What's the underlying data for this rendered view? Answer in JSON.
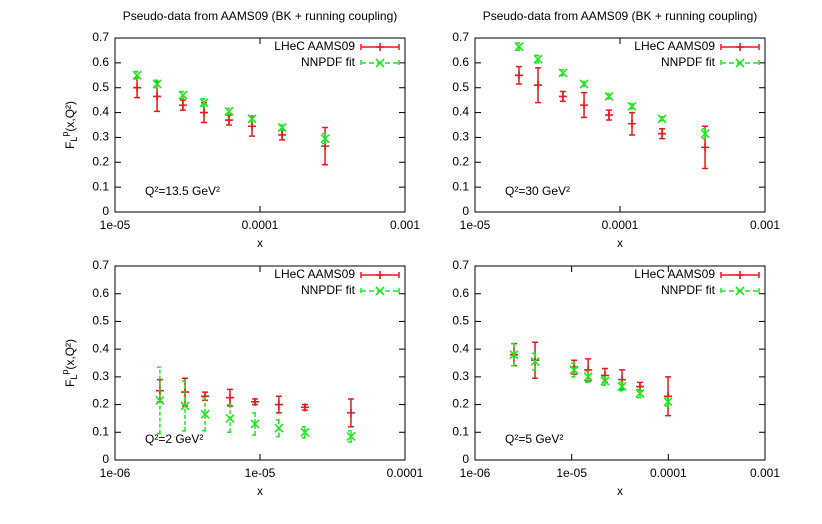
{
  "chart_data": [
    {
      "type": "scatter",
      "title": "Pseudo-data from AAMS09 (BK + running coupling)",
      "xlabel": "x",
      "ylabel": {
        "main": "F",
        "sub": "L",
        "sup": "p",
        "rest": "(x,Q²)"
      },
      "annotation": "Q²=13.5 GeV²",
      "log_x": true,
      "legend": "top-right",
      "xlim": [
        1e-05,
        0.001
      ],
      "xticks": [
        {
          "value": 1e-05,
          "label": "1e-05"
        },
        0.0001,
        0.001
      ],
      "ylim": [
        0,
        0.7
      ],
      "yticks": [
        0,
        0.1,
        0.2,
        0.3,
        0.4,
        0.5,
        0.6,
        0.7
      ],
      "x": [
        1.42e-05,
        1.95e-05,
        2.94e-05,
        4.11e-05,
        6.11e-05,
        8.81e-05,
        0.000142,
        0.000281
      ],
      "series": [
        {
          "name": "LHeC AAMS09",
          "color": "#e41a1c",
          "marker": "plus",
          "values": [
            0.5,
            0.465,
            0.43,
            0.4,
            0.37,
            0.345,
            0.31,
            0.265
          ],
          "errors": [
            0.04,
            0.06,
            0.02,
            0.04,
            0.02,
            0.04,
            0.02,
            0.075
          ]
        },
        {
          "name": "NNPDF fit",
          "color": "#1ee81e",
          "marker": "cross",
          "values": [
            0.55,
            0.515,
            0.47,
            0.44,
            0.405,
            0.375,
            0.34,
            0.295
          ],
          "errors": [
            0.015,
            0.015,
            0.015,
            0.015,
            0.012,
            0.012,
            0.01,
            0.02
          ]
        }
      ]
    },
    {
      "type": "scatter",
      "title": "Pseudo-data from AAMS09 (BK + running coupling)",
      "xlabel": "x",
      "annotation": "Q²=30 GeV²",
      "log_x": true,
      "legend": "top-right",
      "xlim": [
        1e-05,
        0.001
      ],
      "xticks": [
        {
          "value": 1e-05,
          "label": "1e-05"
        },
        0.0001,
        0.001
      ],
      "ylim": [
        0,
        0.7
      ],
      "yticks": [
        0,
        0.1,
        0.2,
        0.3,
        0.4,
        0.5,
        0.6,
        0.7
      ],
      "x": [
        2.01e-05,
        2.72e-05,
        4.04e-05,
        5.65e-05,
        8.4e-05,
        0.000121,
        0.000195,
        0.000386
      ],
      "series": [
        {
          "name": "LHeC AAMS09",
          "color": "#e41a1c",
          "marker": "plus",
          "values": [
            0.55,
            0.51,
            0.465,
            0.43,
            0.39,
            0.355,
            0.315,
            0.26
          ],
          "errors": [
            0.035,
            0.07,
            0.02,
            0.05,
            0.02,
            0.045,
            0.02,
            0.085
          ]
        },
        {
          "name": "NNPDF fit",
          "color": "#1ee81e",
          "marker": "cross",
          "values": [
            0.665,
            0.615,
            0.56,
            0.515,
            0.465,
            0.425,
            0.375,
            0.315
          ],
          "errors": [
            0.015,
            0.015,
            0.012,
            0.01,
            0.01,
            0.01,
            0.008,
            0.02
          ]
        }
      ]
    },
    {
      "type": "scatter",
      "xlabel": "x",
      "ylabel": {
        "main": "F",
        "sub": "L",
        "sup": "p",
        "rest": "(x,Q²)"
      },
      "annotation": "Q²=2 GeV²",
      "log_x": true,
      "legend": "top-right",
      "xlim": [
        1e-06,
        0.0001
      ],
      "xticks": [
        {
          "value": 1e-06,
          "label": "1e-06"
        },
        {
          "value": 1e-05,
          "label": "1e-05"
        },
        0.0001
      ],
      "ylim": [
        0,
        0.7
      ],
      "yticks": [
        0,
        0.1,
        0.2,
        0.3,
        0.4,
        0.5,
        0.6,
        0.7
      ],
      "x": [
        2.04e-06,
        3.04e-06,
        4.18e-06,
        6.21e-06,
        9.24e-06,
        1.35e-05,
        2.04e-05,
        4.24e-05
      ],
      "series": [
        {
          "name": "LHeC AAMS09",
          "color": "#e41a1c",
          "marker": "plus",
          "values": [
            0.25,
            0.245,
            0.23,
            0.225,
            0.21,
            0.2,
            0.19,
            0.17
          ],
          "errors": [
            0.04,
            0.05,
            0.015,
            0.03,
            0.01,
            0.03,
            0.01,
            0.05
          ]
        },
        {
          "name": "NNPDF fit",
          "color": "#1ee81e",
          "marker": "cross",
          "values": [
            0.215,
            0.195,
            0.165,
            0.15,
            0.13,
            0.115,
            0.1,
            0.085
          ],
          "errors": [
            0.12,
            0.09,
            0.06,
            0.05,
            0.04,
            0.03,
            0.02,
            0.02
          ]
        }
      ]
    },
    {
      "type": "scatter",
      "xlabel": "x",
      "annotation": "Q²=5 GeV²",
      "log_x": true,
      "legend": "top-right",
      "xlim": [
        1e-06,
        0.001
      ],
      "xticks": [
        {
          "value": 1e-06,
          "label": "1e-06"
        },
        {
          "value": 1e-05,
          "label": "1e-05"
        },
        0.0001,
        0.001
      ],
      "ylim": [
        0,
        0.7
      ],
      "yticks": [
        0,
        0.1,
        0.2,
        0.3,
        0.4,
        0.5,
        0.6,
        0.7
      ],
      "x": [
        2.53e-06,
        4.18e-06,
        1.06e-05,
        1.48e-05,
        2.21e-05,
        3.32e-05,
        5.09e-05,
        9.93e-05
      ],
      "series": [
        {
          "name": "LHeC AAMS09",
          "color": "#e41a1c",
          "marker": "plus",
          "values": [
            0.38,
            0.36,
            0.335,
            0.325,
            0.305,
            0.29,
            0.265,
            0.23
          ],
          "errors": [
            0.04,
            0.065,
            0.025,
            0.04,
            0.025,
            0.035,
            0.015,
            0.07
          ]
        },
        {
          "name": "NNPDF fit",
          "color": "#1ee81e",
          "marker": "cross",
          "values": [
            0.38,
            0.355,
            0.325,
            0.3,
            0.285,
            0.265,
            0.24,
            0.21
          ],
          "errors": [
            0.04,
            0.03,
            0.025,
            0.02,
            0.015,
            0.015,
            0.015,
            0.015
          ]
        }
      ]
    }
  ]
}
